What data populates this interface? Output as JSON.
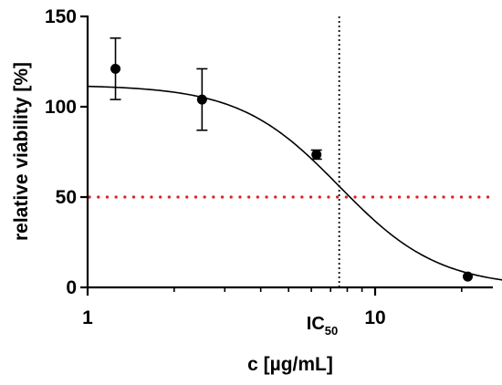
{
  "chart_data": {
    "type": "scatter",
    "xlabel": "c [µg/mL]",
    "ylabel": "relative viability [%]",
    "x_scale": "log",
    "xlim": [
      1,
      30
    ],
    "ylim": [
      0,
      150
    ],
    "x_ticks": [
      1,
      10
    ],
    "x_tick_labels": [
      "1",
      "10"
    ],
    "y_ticks": [
      0,
      50,
      100,
      150
    ],
    "y_tick_labels": [
      "0",
      "50",
      "100",
      "150"
    ],
    "points": [
      {
        "x": 1.25,
        "y": 121,
        "err": 17
      },
      {
        "x": 2.5,
        "y": 104,
        "err": 17
      },
      {
        "x": 6.25,
        "y": 73.5,
        "err": 2.5
      },
      {
        "x": 21,
        "y": 6,
        "err": 0
      }
    ],
    "fit_curve": {
      "model": "four-parameter logistic",
      "top": 112,
      "bottom": 0,
      "ic50": 7.5,
      "hill": 2.5
    },
    "reference_lines": [
      {
        "orientation": "horizontal",
        "y": 50,
        "style": "dotted",
        "color": "#e02020"
      },
      {
        "orientation": "vertical",
        "x": 7.5,
        "style": "dotted",
        "color": "#000000",
        "label_main": "IC",
        "label_sub": "50"
      }
    ],
    "grid": false,
    "colors": {
      "points": "#000000",
      "curve": "#000000",
      "half_line": "#e02020"
    }
  }
}
